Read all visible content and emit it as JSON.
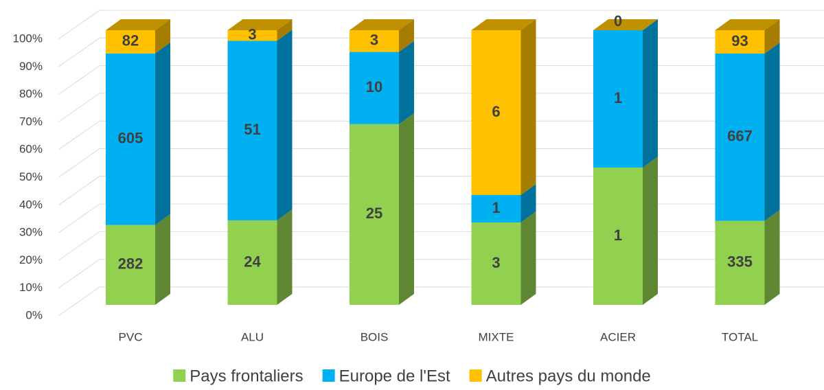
{
  "chart_data": {
    "type": "bar",
    "stacking": "percent",
    "categories": [
      "PVC",
      "ALU",
      "BOIS",
      "MIXTE",
      "ACIER",
      "TOTAL"
    ],
    "series": [
      {
        "name": "Pays frontaliers",
        "color": "#92d050",
        "values": [
          282,
          24,
          25,
          3,
          1,
          335
        ]
      },
      {
        "name": "Europe de l'Est",
        "color": "#00b0f0",
        "values": [
          605,
          51,
          10,
          1,
          1,
          667
        ]
      },
      {
        "name": "Autres pays du monde",
        "color": "#ffc000",
        "values": [
          82,
          3,
          3,
          6,
          0,
          93
        ]
      }
    ],
    "ylim": [
      0,
      100
    ],
    "yticks": [
      {
        "value": 0,
        "label": "0%"
      },
      {
        "value": 10,
        "label": "10%"
      },
      {
        "value": 20,
        "label": "20%"
      },
      {
        "value": 30,
        "label": "30%"
      },
      {
        "value": 40,
        "label": "40%"
      },
      {
        "value": 50,
        "label": "50%"
      },
      {
        "value": 60,
        "label": "60%"
      },
      {
        "value": 70,
        "label": "70%"
      },
      {
        "value": 80,
        "label": "80%"
      },
      {
        "value": 90,
        "label": "90%"
      },
      {
        "value": 100,
        "label": "100%"
      }
    ],
    "grid": true,
    "legend": "bottom"
  }
}
